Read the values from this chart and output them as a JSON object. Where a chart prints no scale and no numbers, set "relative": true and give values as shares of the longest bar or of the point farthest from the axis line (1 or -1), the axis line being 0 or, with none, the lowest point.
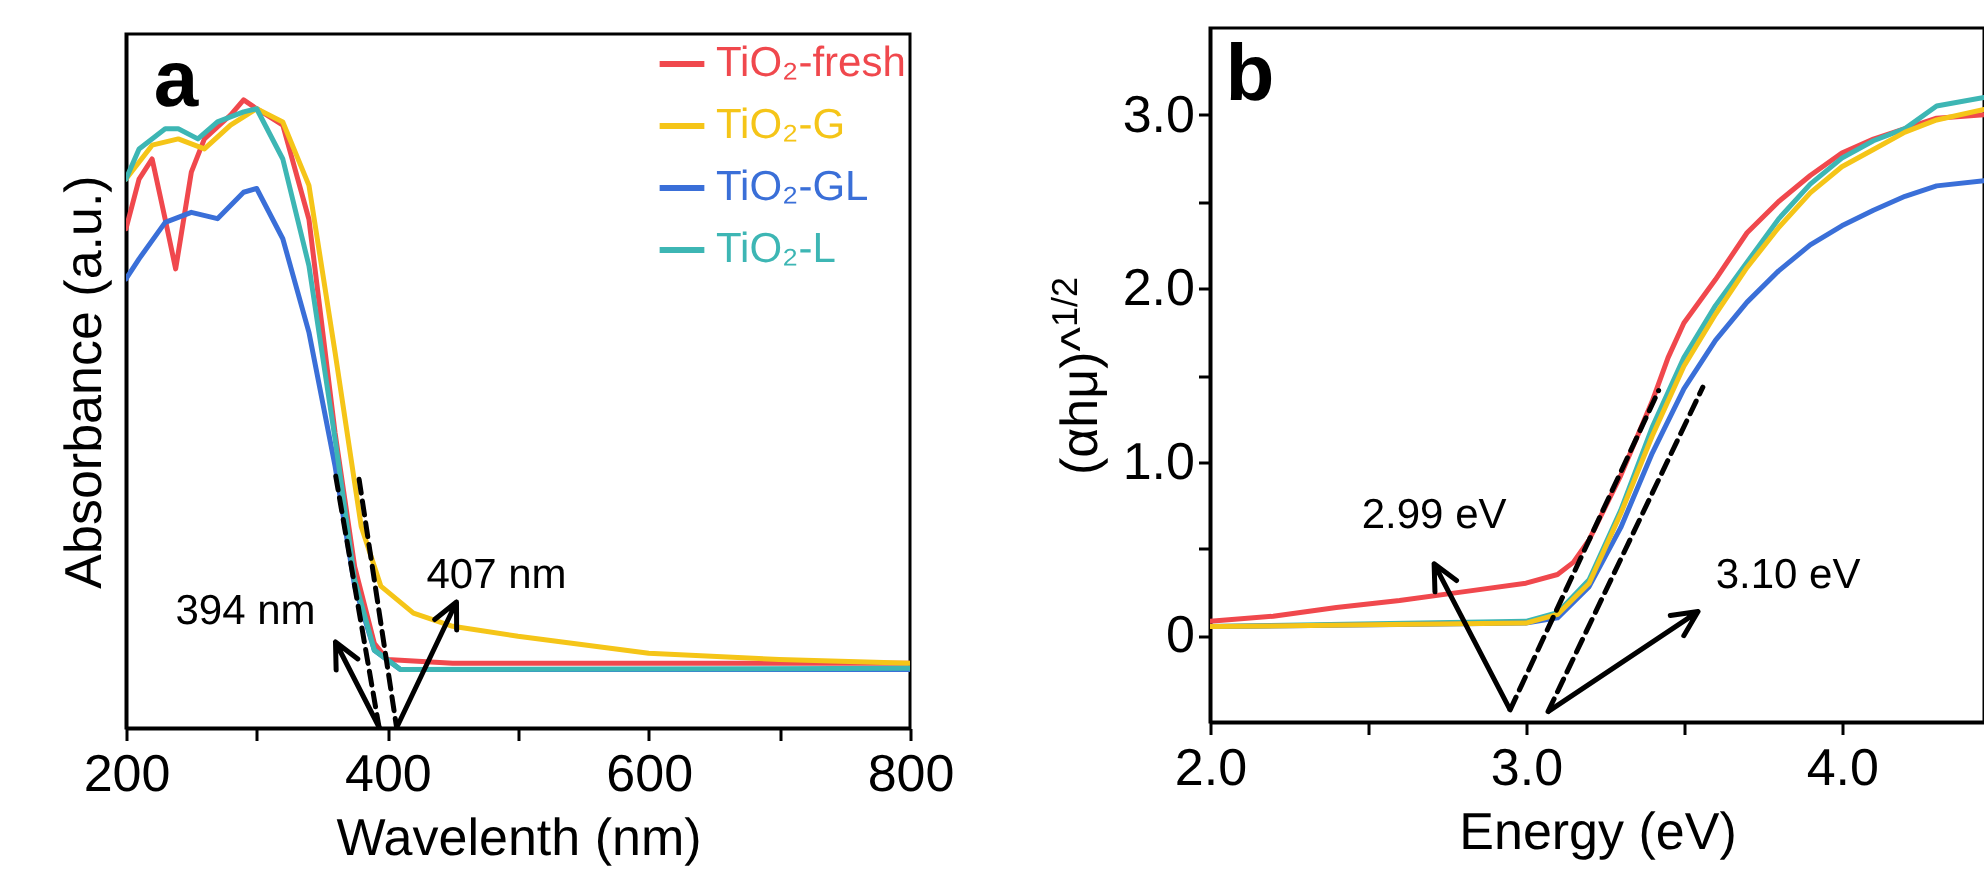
{
  "chart_data": [
    {
      "type": "line",
      "title": "a",
      "xlabel": "Wavelenth (nm)",
      "ylabel": "Absorbance (a.u.)",
      "relative": true,
      "legend": "top right",
      "xlim": [
        200,
        800
      ],
      "xticks": [
        200,
        {
          "value": 300,
          "label": null
        },
        400,
        {
          "value": 500,
          "label": null
        },
        600,
        {
          "value": 700,
          "label": null
        },
        800
      ],
      "series": [
        {
          "name": "TiO₂-fresh",
          "color": "#f0484d",
          "x": [
            200,
            210,
            220,
            230,
            238,
            250,
            260,
            280,
            290,
            300,
            320,
            340,
            360,
            375,
            390,
            400,
            450,
            600,
            800
          ],
          "values": [
            0.795,
            0.874,
            0.906,
            0.81,
            0.731,
            0.885,
            0.938,
            0.976,
            1.0,
            0.986,
            0.96,
            0.81,
            0.47,
            0.257,
            0.135,
            0.109,
            0.103,
            0.103,
            0.103
          ]
        },
        {
          "name": "TiO₂-G",
          "color": "#f5c518",
          "x": [
            200,
            220,
            240,
            260,
            280,
            300,
            320,
            340,
            360,
            380,
            395,
            420,
            450,
            500,
            600,
            700,
            800
          ],
          "values": [
            0.874,
            0.928,
            0.938,
            0.922,
            0.96,
            0.986,
            0.965,
            0.864,
            0.598,
            0.321,
            0.226,
            0.183,
            0.162,
            0.146,
            0.119,
            0.109,
            0.103
          ]
        },
        {
          "name": "TiO₂-GL",
          "color": "#3a6fd8",
          "x": [
            200,
            210,
            230,
            250,
            270,
            290,
            300,
            320,
            340,
            360,
            375,
            390,
            410,
            800
          ],
          "values": [
            0.715,
            0.747,
            0.805,
            0.821,
            0.811,
            0.853,
            0.859,
            0.779,
            0.63,
            0.417,
            0.226,
            0.124,
            0.093,
            0.093
          ]
        },
        {
          "name": "TiO₂-L",
          "color": "#3db6b4",
          "x": [
            200,
            210,
            230,
            240,
            255,
            270,
            290,
            300,
            320,
            340,
            360,
            375,
            390,
            410,
            800
          ],
          "values": [
            0.874,
            0.922,
            0.954,
            0.954,
            0.938,
            0.965,
            0.981,
            0.986,
            0.906,
            0.736,
            0.46,
            0.236,
            0.124,
            0.093,
            0.095
          ]
        },
        {
          "type": "line",
          "color": "#000000",
          "line_style": "dashed",
          "x": [
            360.5,
            393.6
          ],
          "values": [
            0.401,
            0.002
          ]
        },
        {
          "type": "line",
          "color": "#000000",
          "line_style": "dashed",
          "x": [
            378.4,
            407
          ],
          "values": [
            0.396,
            0.002
          ]
        }
      ],
      "annotations": [
        {
          "text": "394 nm",
          "x": 394,
          "y": 0
        },
        {
          "text": "407 nm",
          "x": 407,
          "y": 0
        }
      ]
    },
    {
      "type": "line",
      "title": "b",
      "xlabel": "Energy (eV)",
      "ylabel": "(αhμ)^$^{1/2}$",
      "xlim": [
        2.0,
        4.45
      ],
      "ylim": [
        -0.5,
        3.5
      ],
      "xticks": [
        {
          "value": 2,
          "label": "2.0"
        },
        {
          "value": 2.5,
          "label": null
        },
        {
          "value": 3,
          "label": "3.0"
        },
        {
          "value": 3.5,
          "label": null
        },
        {
          "value": 4,
          "label": "4.0"
        }
      ],
      "yticks": [
        {
          "value": 0,
          "label": "0"
        },
        {
          "value": 0.5,
          "label": null
        },
        {
          "value": 1,
          "label": "1.0"
        },
        {
          "value": 1.5,
          "label": null
        },
        {
          "value": 2,
          "label": "2.0"
        },
        {
          "value": 2.5,
          "label": null
        },
        {
          "value": 3,
          "label": "3.0"
        }
      ],
      "series": [
        {
          "color": "#f0484d",
          "x": [
            2.0,
            2.2,
            2.4,
            2.6,
            2.8,
            3.0,
            3.1,
            3.15,
            3.2,
            3.3,
            3.4,
            3.45,
            3.5,
            3.6,
            3.7,
            3.8,
            3.9,
            4.0,
            4.1,
            4.2,
            4.3,
            4.45
          ],
          "values": [
            0.08,
            0.11,
            0.16,
            0.2,
            0.25,
            0.3,
            0.35,
            0.42,
            0.55,
            0.92,
            1.35,
            1.6,
            1.8,
            2.05,
            2.32,
            2.5,
            2.65,
            2.78,
            2.86,
            2.92,
            2.98,
            3.0
          ]
        },
        {
          "color": "#3db6b4",
          "x": [
            2.0,
            3.0,
            3.1,
            3.2,
            3.3,
            3.4,
            3.5,
            3.6,
            3.7,
            3.8,
            3.9,
            4.0,
            4.1,
            4.2,
            4.3,
            4.45
          ],
          "values": [
            0.05,
            0.08,
            0.13,
            0.32,
            0.72,
            1.2,
            1.6,
            1.9,
            2.15,
            2.4,
            2.6,
            2.75,
            2.85,
            2.92,
            3.05,
            3.1
          ]
        },
        {
          "color": "#3a6fd8",
          "x": [
            2.0,
            3.0,
            3.1,
            3.2,
            3.3,
            3.4,
            3.5,
            3.6,
            3.7,
            3.8,
            3.9,
            4.0,
            4.1,
            4.2,
            4.3,
            4.45
          ],
          "values": [
            0.05,
            0.07,
            0.1,
            0.28,
            0.62,
            1.05,
            1.42,
            1.7,
            1.92,
            2.1,
            2.25,
            2.36,
            2.45,
            2.53,
            2.59,
            2.62
          ]
        },
        {
          "color": "#f5c518",
          "x": [
            2.0,
            2.5,
            3.0,
            3.1,
            3.2,
            3.3,
            3.4,
            3.5,
            3.6,
            3.7,
            3.8,
            3.9,
            4.0,
            4.1,
            4.2,
            4.3,
            4.45
          ],
          "values": [
            0.05,
            0.06,
            0.07,
            0.12,
            0.3,
            0.7,
            1.15,
            1.55,
            1.85,
            2.12,
            2.35,
            2.55,
            2.7,
            2.8,
            2.9,
            2.97,
            3.03
          ]
        },
        {
          "type": "line",
          "color": "#000000",
          "line_style": "dashed",
          "x": [
            2.95,
            3.42
          ],
          "values": [
            -0.43,
            1.41
          ]
        },
        {
          "type": "line",
          "color": "#000000",
          "line_style": "dashed",
          "x": [
            3.07,
            3.56
          ],
          "values": [
            -0.44,
            1.43
          ]
        }
      ],
      "annotations": [
        {
          "text": "2.99 eV",
          "x": 2.95,
          "y": -0.43
        },
        {
          "text": "3.10 eV",
          "x": 3.07,
          "y": -0.44
        }
      ]
    }
  ]
}
